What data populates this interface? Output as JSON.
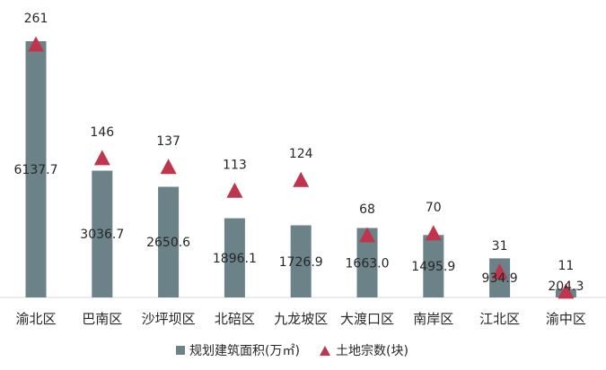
{
  "chart_data": {
    "type": "bar",
    "categories": [
      "渝北区",
      "巴南区",
      "沙坪坝区",
      "北碚区",
      "九龙坡区",
      "大渡口区",
      "南岸区",
      "江北区",
      "渝中区"
    ],
    "series": [
      {
        "name": "规划建筑面积(万㎡)",
        "type": "bar",
        "values": [
          6137.7,
          3036.7,
          2650.6,
          1896.1,
          1726.9,
          1663.0,
          1495.9,
          934.9,
          204.3
        ],
        "labels": [
          "6137.7",
          "3036.7",
          "2650.6",
          "1896.1",
          "1726.9",
          "1663.0",
          "1495.9",
          "934.9",
          "204.3"
        ],
        "color": "#6b8288"
      },
      {
        "name": "土地宗数(块)",
        "type": "scatter",
        "marker": "triangle",
        "values": [
          261,
          146,
          137,
          113,
          124,
          68,
          70,
          31,
          11
        ],
        "labels": [
          "261",
          "146",
          "137",
          "113",
          "124",
          "68",
          "70",
          "31",
          "11"
        ],
        "color": "#c0354b"
      }
    ],
    "legend_position": "bottom",
    "grid": false
  }
}
